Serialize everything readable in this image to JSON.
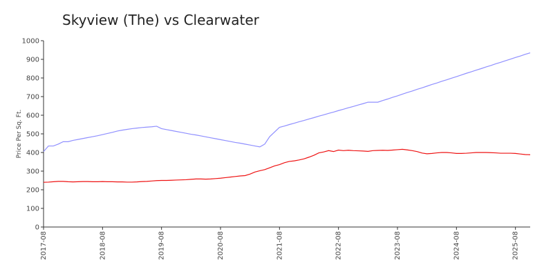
{
  "chart_data": {
    "type": "line",
    "title": "Skyview (The) vs Clearwater",
    "y_label": "Price Per Sq. Ft.",
    "categories": [
      "2017-08",
      "2017-09",
      "2017-10",
      "2017-11",
      "2017-12",
      "2018-01",
      "2018-02",
      "2018-03",
      "2018-04",
      "2018-05",
      "2018-06",
      "2018-07",
      "2018-08",
      "2018-09",
      "2018-10",
      "2018-11",
      "2018-12",
      "2019-01",
      "2019-02",
      "2019-03",
      "2019-04",
      "2019-05",
      "2019-06",
      "2019-07",
      "2019-08",
      "2019-09",
      "2019-10",
      "2019-11",
      "2019-12",
      "2020-01",
      "2020-02",
      "2020-03",
      "2020-04",
      "2020-05",
      "2020-06",
      "2020-07",
      "2020-08",
      "2020-09",
      "2020-10",
      "2020-11",
      "2020-12",
      "2021-01",
      "2021-02",
      "2021-03",
      "2021-04",
      "2021-05",
      "2021-06",
      "2021-07",
      "2021-08",
      "2021-09",
      "2021-10",
      "2021-11",
      "2021-12",
      "2022-01",
      "2022-02",
      "2022-03",
      "2022-04",
      "2022-05",
      "2022-06",
      "2022-07",
      "2022-08",
      "2022-09",
      "2022-10",
      "2022-11",
      "2022-12",
      "2023-01",
      "2023-02",
      "2023-03",
      "2023-04",
      "2023-05",
      "2023-06",
      "2023-07",
      "2023-08",
      "2023-09",
      "2023-10",
      "2023-11",
      "2023-12",
      "2024-01",
      "2024-02",
      "2024-03",
      "2024-04",
      "2024-05",
      "2024-06",
      "2024-07",
      "2024-08",
      "2024-09",
      "2024-10",
      "2024-11",
      "2024-12",
      "2025-01",
      "2025-02",
      "2025-03",
      "2025-04",
      "2025-05",
      "2025-06",
      "2025-07",
      "2025-08",
      "2025-09",
      "2025-10",
      "2025-11"
    ],
    "xticks": [
      "2017-08",
      "2018-08",
      "2019-08",
      "2020-08",
      "2021-08",
      "2022-08",
      "2023-08",
      "2024-08",
      "2025-08"
    ],
    "series": [
      {
        "color": "#8f8fff",
        "values": [
          405,
          435,
          435,
          445,
          458,
          458,
          465,
          470,
          475,
          480,
          485,
          490,
          496,
          502,
          508,
          515,
          520,
          524,
          528,
          531,
          534,
          536,
          538,
          541,
          528,
          523,
          518,
          513,
          508,
          503,
          498,
          494,
          489,
          484,
          479,
          474,
          469,
          464,
          459,
          454,
          450,
          445,
          440,
          435,
          430,
          445,
          485,
          510,
          535,
          542,
          550,
          557,
          565,
          572,
          580,
          587,
          595,
          602,
          610,
          617,
          625,
          632,
          640,
          647,
          655,
          662,
          670,
          670,
          670,
          679,
          687,
          696,
          704,
          713,
          722,
          730,
          739,
          747,
          756,
          765,
          773,
          782,
          790,
          799,
          807,
          816,
          825,
          833,
          842,
          850,
          859,
          867,
          876,
          884,
          893,
          901,
          910,
          918,
          927,
          935
        ]
      },
      {
        "color": "#ee1111",
        "values": [
          240,
          241,
          243,
          245,
          245,
          243,
          242,
          243,
          244,
          244,
          243,
          243,
          244,
          243,
          243,
          242,
          242,
          241,
          241,
          242,
          244,
          245,
          247,
          249,
          250,
          250,
          251,
          252,
          253,
          254,
          256,
          258,
          258,
          257,
          258,
          260,
          262,
          265,
          268,
          271,
          274,
          276,
          284,
          295,
          302,
          308,
          318,
          328,
          335,
          345,
          352,
          355,
          360,
          366,
          375,
          385,
          398,
          403,
          410,
          405,
          413,
          410,
          412,
          410,
          409,
          408,
          406,
          410,
          411,
          412,
          411,
          413,
          415,
          417,
          414,
          410,
          405,
          397,
          393,
          395,
          398,
          400,
          400,
          398,
          395,
          395,
          396,
          398,
          400,
          400,
          400,
          399,
          398,
          396,
          396,
          396,
          395,
          392,
          389,
          388
        ]
      }
    ],
    "ylim": [
      0,
      1000
    ],
    "yticks": [
      0,
      100,
      200,
      300,
      400,
      500,
      600,
      700,
      800,
      900,
      1000
    ]
  }
}
